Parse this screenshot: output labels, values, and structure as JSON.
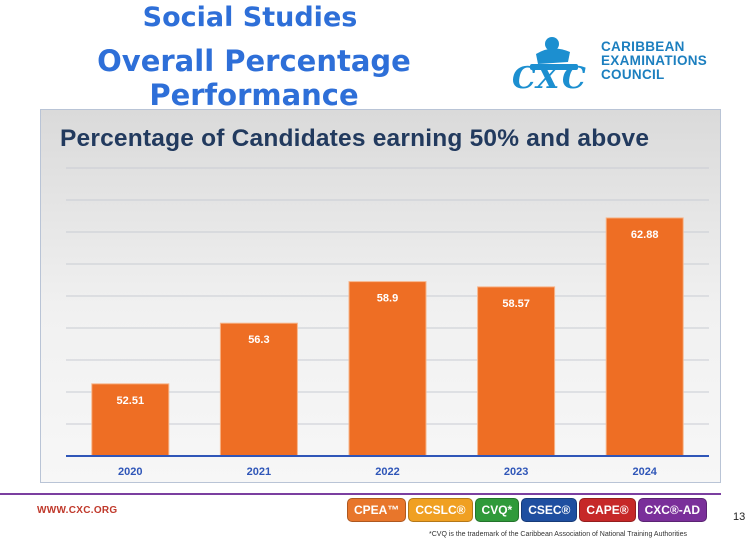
{
  "header": {
    "title_line1": "Social Studies",
    "title_line2": "Overall Percentage Performance"
  },
  "logo": {
    "mark": "CXC",
    "org_line1": "CARIBBEAN",
    "org_line2": "EXAMINATIONS",
    "org_line3": "COUNCIL"
  },
  "chart_data": {
    "type": "bar",
    "title": "Percentage of Candidates earning 50% and above",
    "categories": [
      "2020",
      "2021",
      "2022",
      "2023",
      "2024"
    ],
    "values": [
      52.51,
      56.3,
      58.9,
      58.57,
      62.88
    ],
    "value_labels": [
      "52.51",
      "56.3",
      "58.9",
      "58.57",
      "62.88"
    ],
    "xlabel": "",
    "ylabel": "",
    "ylim": [
      48,
      66
    ],
    "grid": true,
    "legend": "none",
    "bar_color": "#ee6e24"
  },
  "footer": {
    "website": "WWW.CXC.ORG",
    "page_number": "13",
    "footnote": "*CVQ is the trademark of the Caribbean Association of National Training Authorities",
    "badges": [
      {
        "label": "CPEA™",
        "color": "#e8762b"
      },
      {
        "label": "CCSLC®",
        "color": "#f0a022"
      },
      {
        "label": "CVQ*",
        "color": "#2f9a3a"
      },
      {
        "label": "CSEC®",
        "color": "#1f4fa0"
      },
      {
        "label": "CAPE®",
        "color": "#c62828"
      },
      {
        "label": "CXC®-AD",
        "color": "#7a2f9a"
      }
    ]
  },
  "colors": {
    "title_blue": "#2e6fd8",
    "chart_title": "#223a5e",
    "axis_line": "#2f56b8",
    "footer_line": "#7b3fa0"
  }
}
